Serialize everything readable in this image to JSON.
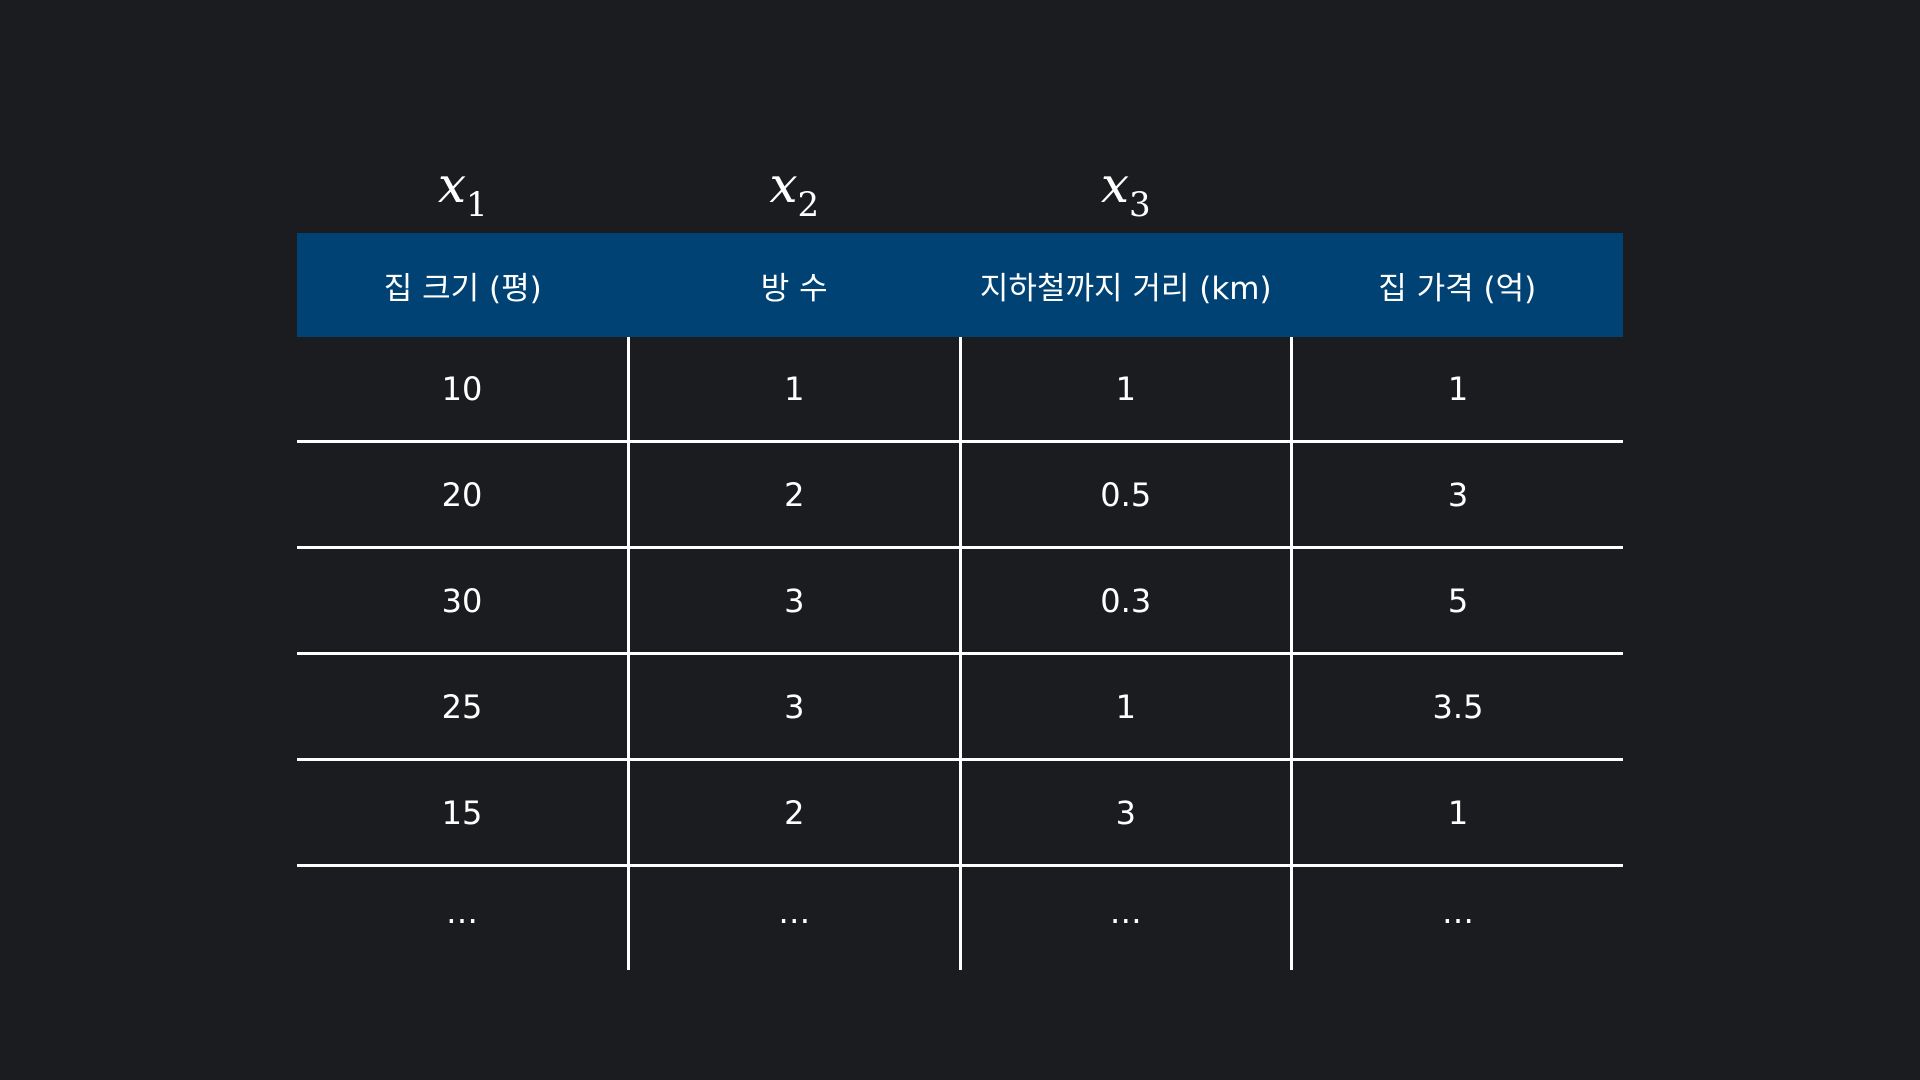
{
  "variable_labels": [
    {
      "base": "x",
      "sub": "1"
    },
    {
      "base": "x",
      "sub": "2"
    },
    {
      "base": "x",
      "sub": "3"
    }
  ],
  "table": {
    "headers": [
      "집 크기 (평)",
      "방 수",
      "지하철까지 거리 (km)",
      "집 가격 (억)"
    ],
    "rows": [
      [
        "10",
        "1",
        "1",
        "1"
      ],
      [
        "20",
        "2",
        "0.5",
        "3"
      ],
      [
        "30",
        "3",
        "0.3",
        "5"
      ],
      [
        "25",
        "3",
        "1",
        "3.5"
      ],
      [
        "15",
        "2",
        "3",
        "1"
      ],
      [
        "…",
        "…",
        "…",
        "…"
      ]
    ]
  },
  "colors": {
    "background": "#1b1c20",
    "header_background": "#004274",
    "grid_lines": "#ffffff",
    "text": "#ffffff"
  }
}
